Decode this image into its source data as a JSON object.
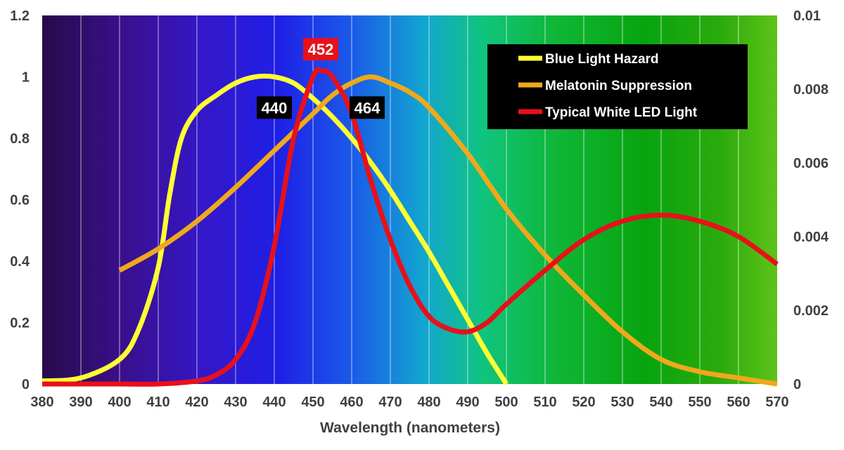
{
  "chart_data": {
    "type": "line",
    "title": "",
    "xlabel": "Wavelength (nanometers)",
    "xlim": [
      380,
      570
    ],
    "x_ticks": [
      "380",
      "390",
      "400",
      "410",
      "420",
      "430",
      "440",
      "450",
      "460",
      "470",
      "480",
      "490",
      "500",
      "510",
      "520",
      "530",
      "540",
      "550",
      "560",
      "570"
    ],
    "y_left_lim": [
      0,
      1.2
    ],
    "y_left_ticks": [
      "0",
      "0.2",
      "0.4",
      "0.6",
      "0.8",
      "1",
      "1.2"
    ],
    "y_right_lim": [
      0,
      0.01
    ],
    "y_right_ticks": [
      "0",
      "0.002",
      "0.004",
      "0.006",
      "0.008",
      "0.01"
    ],
    "grid": "vertical lines",
    "background": "visible-spectrum gradient (violet to green)",
    "legend_position": "top-right",
    "series": [
      {
        "name": "Blue Light Hazard",
        "color": "#ffff33",
        "axis": "left",
        "x": [
          380,
          390,
          400,
          405,
          410,
          413,
          416,
          420,
          425,
          430,
          435,
          440,
          445,
          450,
          455,
          460,
          465,
          470,
          475,
          480,
          485,
          490,
          495,
          500
        ],
        "y": [
          0.01,
          0.02,
          0.08,
          0.18,
          0.38,
          0.62,
          0.8,
          0.89,
          0.94,
          0.98,
          1.0,
          1.0,
          0.98,
          0.93,
          0.87,
          0.8,
          0.72,
          0.63,
          0.53,
          0.43,
          0.32,
          0.21,
          0.1,
          0.0
        ]
      },
      {
        "name": "Melatonin Suppression",
        "color": "#f0a81c",
        "axis": "left",
        "x": [
          400,
          410,
          420,
          430,
          440,
          450,
          455,
          460,
          465,
          470,
          475,
          480,
          490,
          500,
          510,
          520,
          530,
          540,
          550,
          560,
          570
        ],
        "y": [
          0.37,
          0.44,
          0.53,
          0.64,
          0.76,
          0.88,
          0.94,
          0.98,
          1.0,
          0.98,
          0.95,
          0.9,
          0.75,
          0.57,
          0.42,
          0.29,
          0.17,
          0.08,
          0.04,
          0.02,
          0.0
        ]
      },
      {
        "name": "Typical White LED Light",
        "color": "#e8101a",
        "axis": "left",
        "x": [
          380,
          400,
          410,
          420,
          425,
          430,
          435,
          440,
          445,
          450,
          452,
          455,
          460,
          465,
          470,
          475,
          480,
          485,
          490,
          495,
          500,
          510,
          520,
          530,
          540,
          550,
          560,
          570
        ],
        "y": [
          0.0,
          0.0,
          0.0,
          0.01,
          0.03,
          0.08,
          0.2,
          0.45,
          0.8,
          1.0,
          1.02,
          1.0,
          0.88,
          0.66,
          0.47,
          0.32,
          0.22,
          0.18,
          0.17,
          0.2,
          0.26,
          0.37,
          0.47,
          0.53,
          0.55,
          0.53,
          0.48,
          0.39
        ]
      }
    ],
    "annotations": [
      {
        "text": "440",
        "x": 440,
        "y": 0.9,
        "bg": "#000000"
      },
      {
        "text": "452",
        "x": 452,
        "y": 1.09,
        "bg": "#e8101a"
      },
      {
        "text": "464",
        "x": 464,
        "y": 0.9,
        "bg": "#000000"
      }
    ]
  }
}
